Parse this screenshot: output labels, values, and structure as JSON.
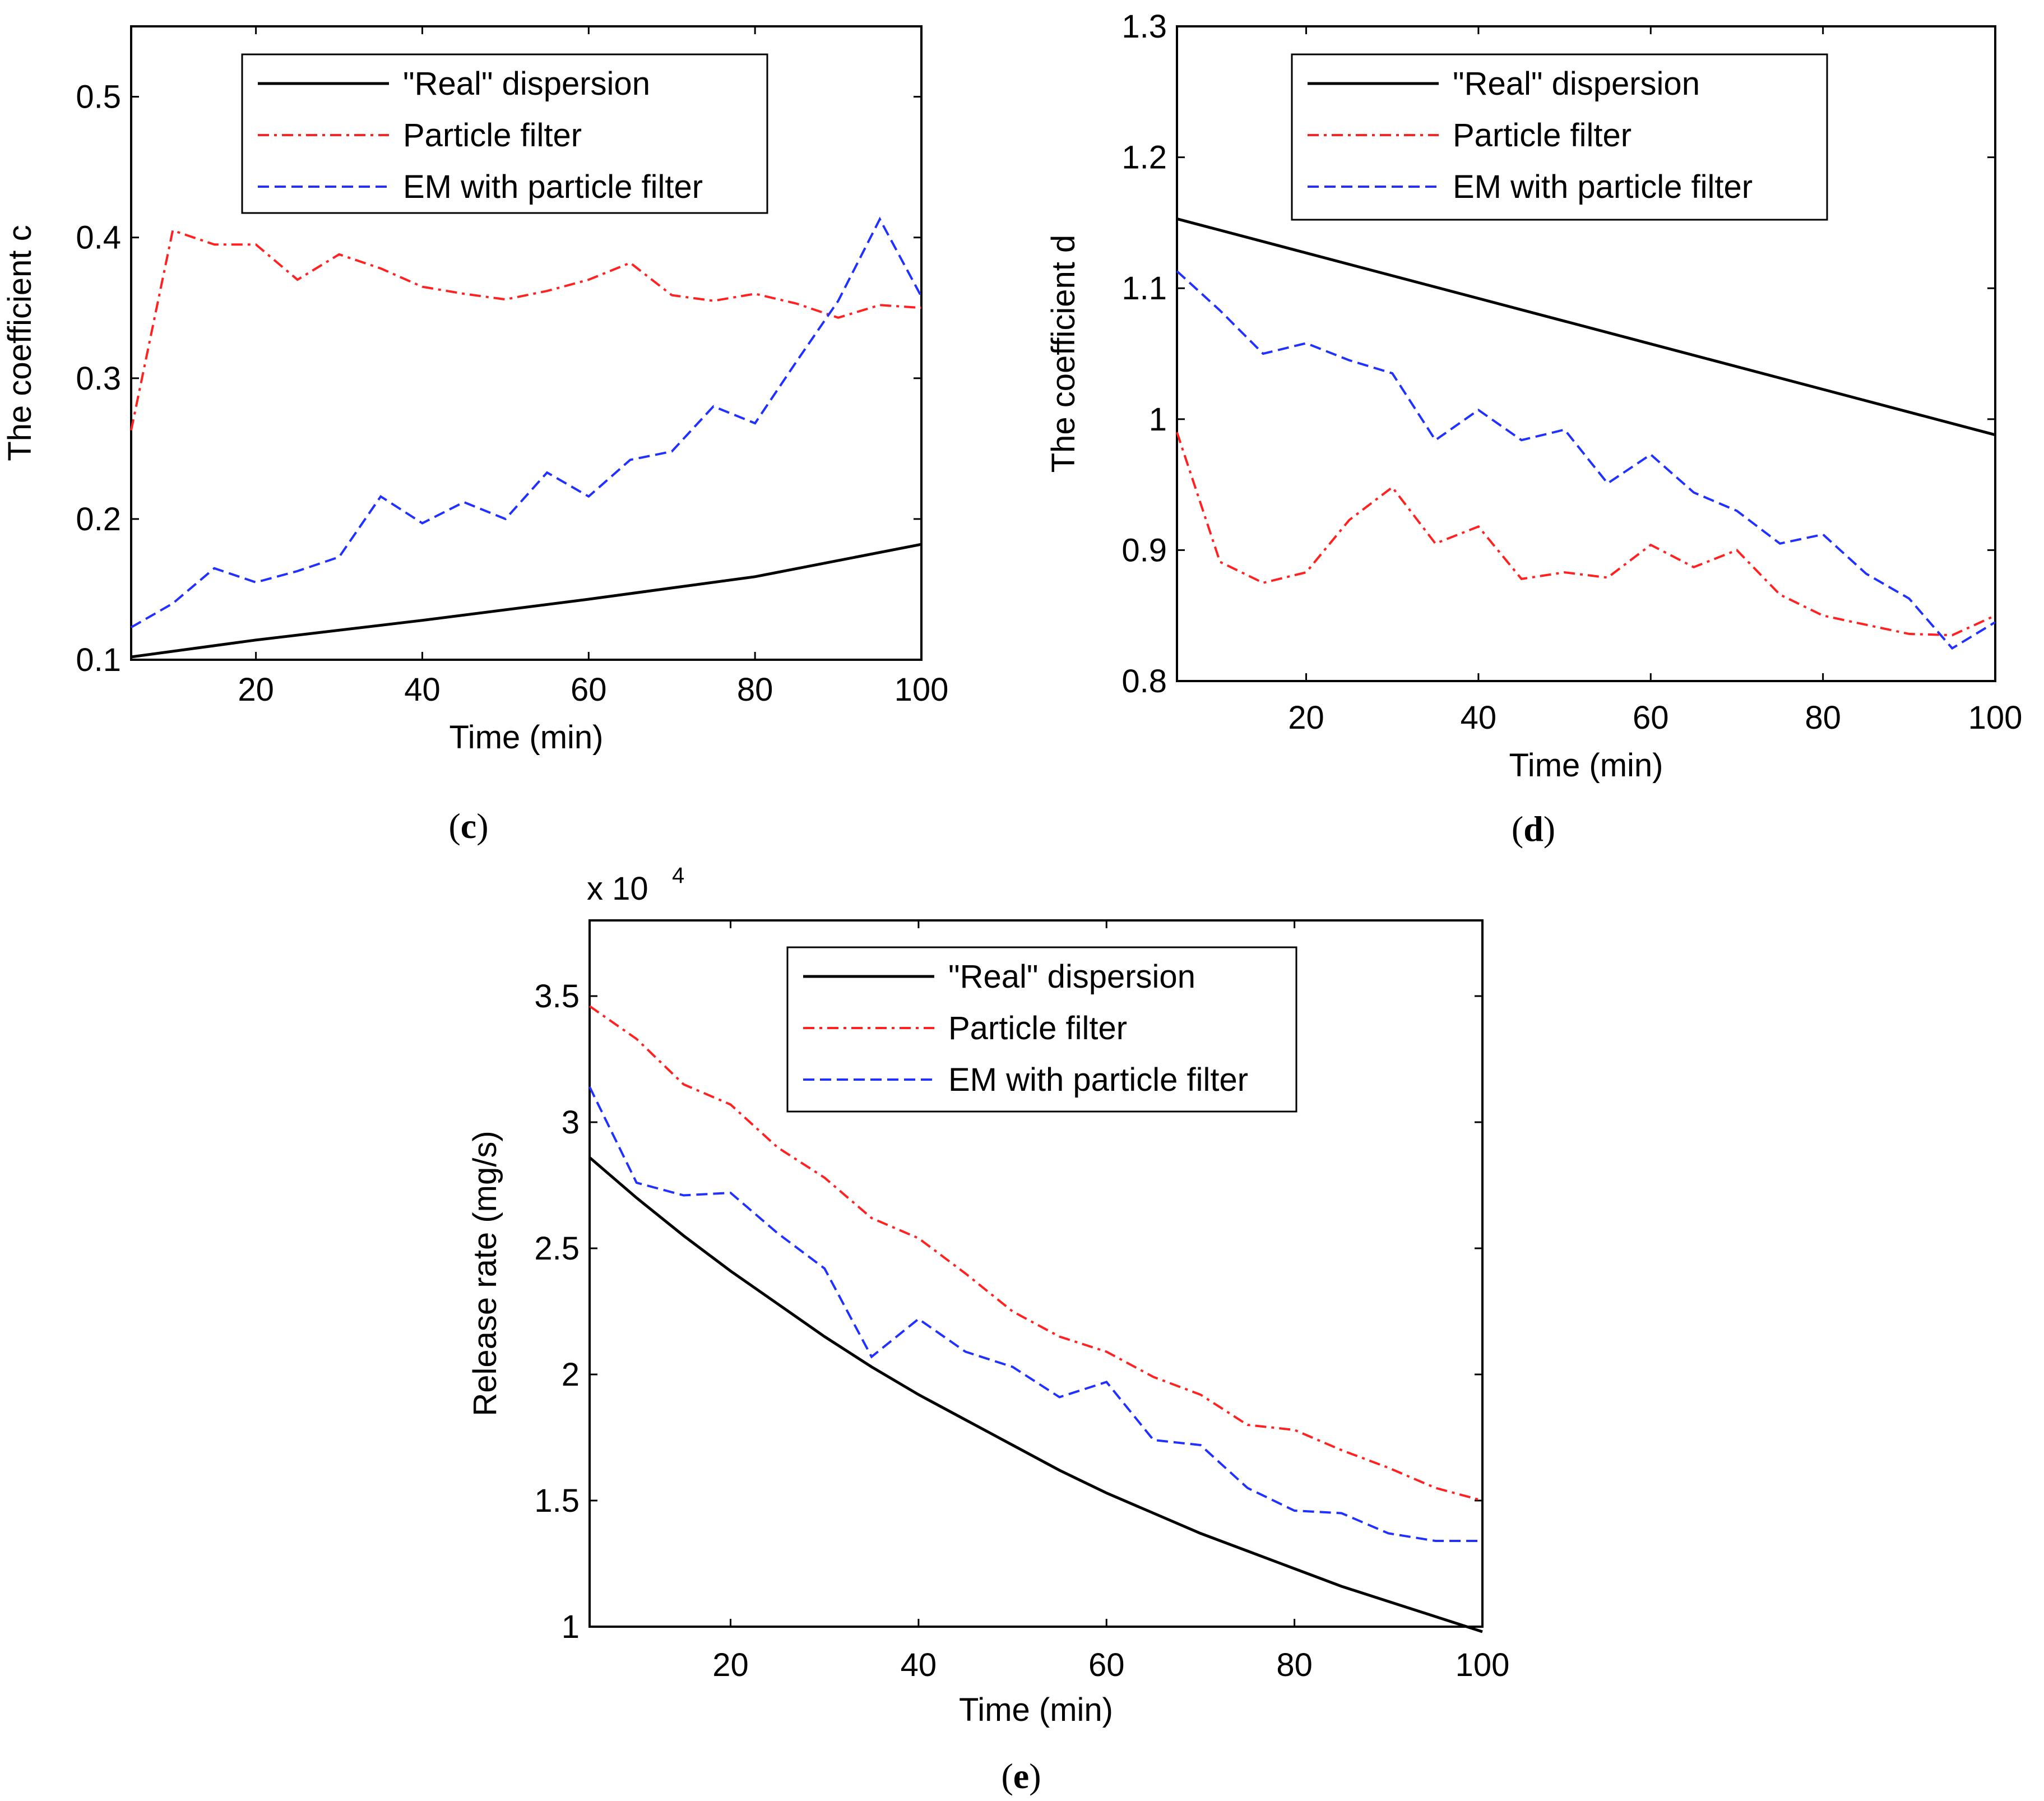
{
  "chart_data": [
    {
      "id": "c",
      "type": "line",
      "panel_label": "c",
      "xlabel": "Time (min)",
      "ylabel": "The coefficient c",
      "xlim": [
        5,
        100
      ],
      "ylim": [
        0.1,
        0.55
      ],
      "xticks": [
        20,
        40,
        60,
        80,
        100
      ],
      "yticks": [
        0.1,
        0.2,
        0.3,
        0.4,
        0.5
      ],
      "ytick_labels": [
        "0.1",
        "0.2",
        "0.3",
        "0.4",
        "0.5"
      ],
      "legend_position": "top-center",
      "series": [
        {
          "name": "\"Real\" dispersion",
          "color": "#000000",
          "style": "solid",
          "x": [
            5,
            20,
            40,
            60,
            80,
            100
          ],
          "values": [
            0.102,
            0.114,
            0.128,
            0.143,
            0.159,
            0.182
          ]
        },
        {
          "name": "Particle filter",
          "color": "#ff2020",
          "style": "dashdot",
          "x": [
            5,
            10,
            15,
            20,
            25,
            30,
            35,
            40,
            45,
            50,
            55,
            60,
            65,
            70,
            75,
            80,
            85,
            90,
            95,
            100
          ],
          "values": [
            0.263,
            0.405,
            0.395,
            0.395,
            0.37,
            0.388,
            0.378,
            0.365,
            0.36,
            0.356,
            0.362,
            0.37,
            0.382,
            0.359,
            0.355,
            0.36,
            0.353,
            0.343,
            0.352,
            0.35
          ]
        },
        {
          "name": "EM with particle filter",
          "color": "#2030ff",
          "style": "dashed",
          "x": [
            5,
            10,
            15,
            20,
            25,
            30,
            35,
            40,
            45,
            50,
            55,
            60,
            65,
            70,
            75,
            80,
            85,
            90,
            95,
            100
          ],
          "values": [
            0.123,
            0.14,
            0.165,
            0.155,
            0.163,
            0.173,
            0.216,
            0.197,
            0.212,
            0.2,
            0.233,
            0.216,
            0.242,
            0.248,
            0.28,
            0.268,
            0.312,
            0.355,
            0.413,
            0.358
          ]
        }
      ]
    },
    {
      "id": "d",
      "type": "line",
      "panel_label": "d",
      "xlabel": "Time (min)",
      "ylabel": "The coefficient d",
      "xlim": [
        5,
        100
      ],
      "ylim": [
        0.8,
        1.3
      ],
      "xticks": [
        20,
        40,
        60,
        80,
        100
      ],
      "yticks": [
        0.8,
        0.9,
        1.0,
        1.1,
        1.2,
        1.3
      ],
      "ytick_labels": [
        "0.8",
        "0.9",
        "1",
        "1.1",
        "1.2",
        "1.3"
      ],
      "legend_position": "top-center",
      "series": [
        {
          "name": "\"Real\" dispersion",
          "color": "#000000",
          "style": "solid",
          "x": [
            5,
            100
          ],
          "values": [
            1.153,
            0.988
          ]
        },
        {
          "name": "Particle filter",
          "color": "#ff2020",
          "style": "dashdot",
          "x": [
            5,
            10,
            15,
            20,
            25,
            30,
            35,
            40,
            45,
            50,
            55,
            60,
            65,
            70,
            75,
            80,
            85,
            90,
            95,
            100
          ],
          "values": [
            0.99,
            0.891,
            0.875,
            0.883,
            0.923,
            0.948,
            0.905,
            0.918,
            0.878,
            0.883,
            0.879,
            0.904,
            0.887,
            0.9,
            0.866,
            0.85,
            0.843,
            0.836,
            0.835,
            0.85
          ]
        },
        {
          "name": "EM with particle filter",
          "color": "#2030ff",
          "style": "dashed",
          "x": [
            5,
            10,
            15,
            20,
            25,
            30,
            35,
            40,
            45,
            50,
            55,
            60,
            65,
            70,
            75,
            80,
            85,
            90,
            95,
            100
          ],
          "values": [
            1.113,
            1.083,
            1.05,
            1.058,
            1.045,
            1.035,
            0.984,
            1.007,
            0.984,
            0.992,
            0.951,
            0.973,
            0.944,
            0.93,
            0.905,
            0.912,
            0.882,
            0.863,
            0.825,
            0.845
          ]
        }
      ]
    },
    {
      "id": "e",
      "type": "line",
      "panel_label": "e",
      "xlabel": "Time (min)",
      "ylabel": "Release rate (mg/s)",
      "multiplier_label": "x 10",
      "multiplier_exponent": "4",
      "xlim": [
        5,
        100
      ],
      "ylim": [
        1.0,
        3.8
      ],
      "xticks": [
        20,
        40,
        60,
        80,
        100
      ],
      "yticks": [
        1.0,
        1.5,
        2.0,
        2.5,
        3.0,
        3.5
      ],
      "ytick_labels": [
        "1",
        "1.5",
        "2",
        "2.5",
        "3",
        "3.5"
      ],
      "legend_position": "top-center",
      "series": [
        {
          "name": "\"Real\" dispersion",
          "color": "#000000",
          "style": "solid",
          "x": [
            5,
            10,
            15,
            20,
            25,
            30,
            35,
            40,
            45,
            50,
            55,
            60,
            65,
            70,
            75,
            80,
            85,
            90,
            95,
            100
          ],
          "values": [
            2.86,
            2.7,
            2.55,
            2.41,
            2.28,
            2.15,
            2.03,
            1.92,
            1.82,
            1.72,
            1.62,
            1.53,
            1.45,
            1.37,
            1.3,
            1.23,
            1.16,
            1.1,
            1.04,
            0.98
          ]
        },
        {
          "name": "Particle filter",
          "color": "#ff2020",
          "style": "dashdot",
          "x": [
            5,
            10,
            15,
            20,
            25,
            30,
            35,
            40,
            45,
            50,
            55,
            60,
            65,
            70,
            75,
            80,
            85,
            90,
            95,
            100
          ],
          "values": [
            3.46,
            3.33,
            3.15,
            3.07,
            2.9,
            2.78,
            2.62,
            2.54,
            2.4,
            2.25,
            2.15,
            2.09,
            1.99,
            1.92,
            1.8,
            1.78,
            1.7,
            1.63,
            1.55,
            1.5
          ]
        },
        {
          "name": "EM with particle filter",
          "color": "#2030ff",
          "style": "dashed",
          "x": [
            5,
            10,
            15,
            20,
            25,
            30,
            35,
            40,
            45,
            50,
            55,
            60,
            65,
            70,
            75,
            80,
            85,
            90,
            95,
            100
          ],
          "values": [
            3.14,
            2.76,
            2.71,
            2.72,
            2.56,
            2.42,
            2.07,
            2.22,
            2.09,
            2.03,
            1.91,
            1.97,
            1.74,
            1.72,
            1.55,
            1.46,
            1.45,
            1.37,
            1.34,
            1.34
          ]
        }
      ]
    }
  ]
}
